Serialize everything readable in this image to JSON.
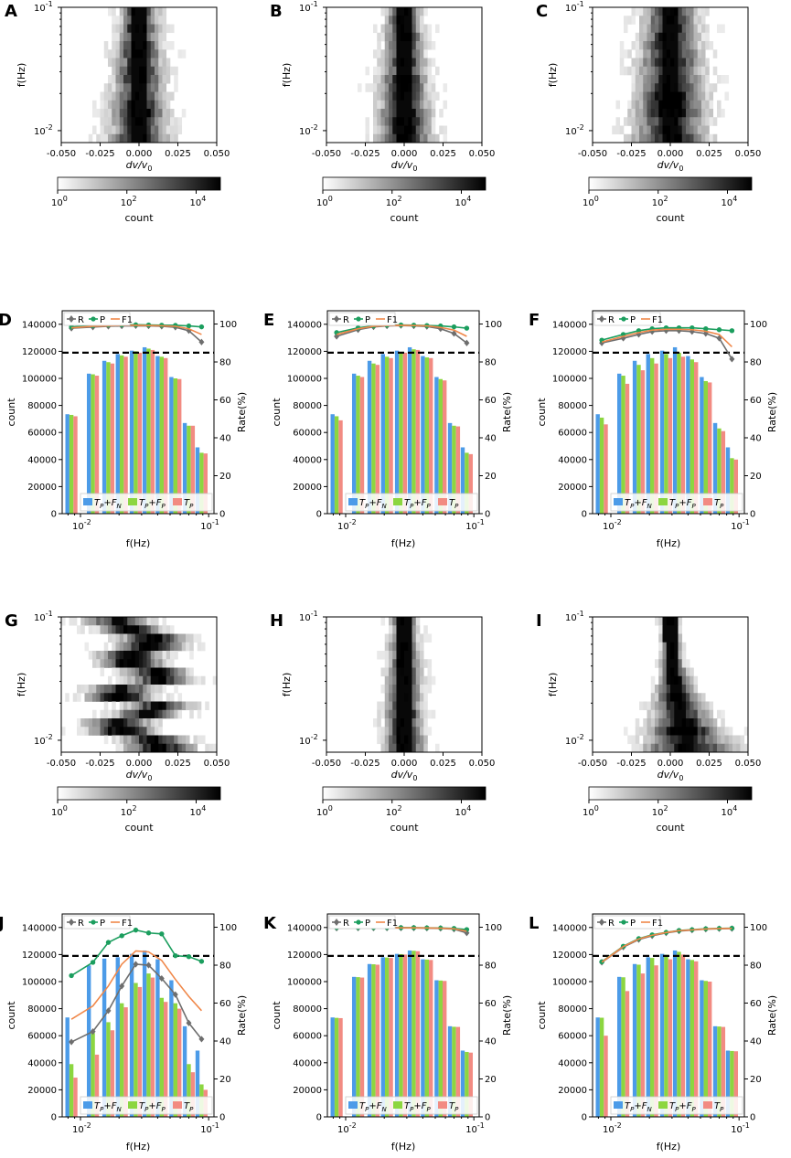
{
  "figure": {
    "heatmap_axes": {
      "xlabel": "dv/v",
      "xlabel_sub": "0",
      "ylabel": "f(Hz)",
      "xticks": [
        "-0.050",
        "-0.025",
        "0.000",
        "0.025",
        "0.050"
      ],
      "yticks": [
        {
          "base": "10",
          "exp": "-1"
        },
        {
          "base": "10",
          "exp": "-2"
        }
      ],
      "colorbar_label": "count",
      "colorbar_ticks": [
        {
          "base": "10",
          "exp": "0"
        },
        {
          "base": "10",
          "exp": "2"
        },
        {
          "base": "10",
          "exp": "4"
        }
      ]
    },
    "bar_axes": {
      "xlabel": "f(Hz)",
      "ylabel_left": "count",
      "ylabel_right": "Rate(%)",
      "yticks_left": [
        "0",
        "20000",
        "40000",
        "60000",
        "80000",
        "100000",
        "120000",
        "140000"
      ],
      "yticks_right": [
        "0",
        "20",
        "40",
        "60",
        "80",
        "100"
      ],
      "xticks": [
        {
          "base": "10",
          "exp": "-2"
        },
        {
          "base": "10",
          "exp": "-1"
        }
      ],
      "line_legend": [
        "R",
        "P",
        "F1"
      ],
      "bar_legend": [
        {
          "main": "T",
          "sub": "P",
          "plus": "+",
          "main2": "F",
          "sub2": "N"
        },
        {
          "main": "T",
          "sub": "P",
          "plus": "+",
          "main2": "F",
          "sub2": "P"
        },
        {
          "main": "T",
          "sub": "P",
          "plus": "",
          "main2": "",
          "sub2": ""
        }
      ]
    },
    "colors": {
      "bar_tpfn": "#4c9be8",
      "bar_tpfp": "#8cd640",
      "bar_tp": "#f28b82",
      "R": "#6e6e6e",
      "P": "#1b9e5e",
      "F1": "#f0884a",
      "threshold": "#000000"
    }
  },
  "chart_data": [
    {
      "panel": "A",
      "type": "heatmap",
      "xlabel": "dv/v0",
      "ylabel": "f(Hz)",
      "xlim": [
        -0.05,
        0.05
      ],
      "ylim": [
        0.008,
        0.1
      ],
      "colorbar": "count (log, 1 to 50000)",
      "center": 0.0,
      "width": 0.018,
      "width_low": 0.028,
      "noise": 0.009
    },
    {
      "panel": "B",
      "type": "heatmap",
      "xlabel": "dv/v0",
      "ylabel": "f(Hz)",
      "xlim": [
        -0.05,
        0.05
      ],
      "ylim": [
        0.008,
        0.1
      ],
      "colorbar": "count (log, 1 to 50000)",
      "center": 0.0,
      "width": 0.016,
      "width_low": 0.026,
      "noise": 0.008
    },
    {
      "panel": "C",
      "type": "heatmap",
      "xlabel": "dv/v0",
      "ylabel": "f(Hz)",
      "xlim": [
        -0.05,
        0.05
      ],
      "ylim": [
        0.008,
        0.1
      ],
      "colorbar": "count (log, 1 to 50000)",
      "center": 0.0,
      "width": 0.025,
      "width_low": 0.036,
      "noise": 0.01
    },
    {
      "panel": "D",
      "type": "bar",
      "xlabel": "f(Hz)",
      "ylabel": "count",
      "ylabel_right": "Rate(%)",
      "ylim": [
        0,
        150000
      ],
      "ylim_right": [
        0,
        107
      ],
      "threshold_count": 119000,
      "x": [
        0.0085,
        0.0125,
        0.0165,
        0.021,
        0.027,
        0.034,
        0.043,
        0.055,
        0.07,
        0.088
      ],
      "series": [
        {
          "name": "TP+FN",
          "values": [
            73500,
            103500,
            113000,
            118000,
            120500,
            123000,
            116500,
            101000,
            67000,
            49000
          ]
        },
        {
          "name": "TP+FP",
          "values": [
            73000,
            103000,
            112000,
            117000,
            120000,
            122000,
            116000,
            100000,
            65000,
            45000
          ]
        },
        {
          "name": "TP",
          "values": [
            72000,
            102000,
            111000,
            116000,
            119000,
            121000,
            115000,
            99500,
            65000,
            44500
          ]
        }
      ],
      "lines": [
        {
          "name": "R",
          "values": [
            97.8,
            98.4,
            98.8,
            99.0,
            99.1,
            99.0,
            98.8,
            98.3,
            96.5,
            90.5
          ]
        },
        {
          "name": "P",
          "values": [
            98.5,
            99.2,
            99.5,
            99.6,
            99.6,
            99.5,
            99.4,
            99.3,
            99.0,
            98.5
          ]
        },
        {
          "name": "F1",
          "values": [
            98.0,
            98.8,
            99.1,
            99.3,
            99.3,
            99.2,
            99.1,
            98.8,
            97.5,
            94.5
          ]
        }
      ]
    },
    {
      "panel": "E",
      "type": "bar",
      "xlabel": "f(Hz)",
      "ylabel": "count",
      "ylabel_right": "Rate(%)",
      "ylim": [
        0,
        150000
      ],
      "ylim_right": [
        0,
        107
      ],
      "threshold_count": 119000,
      "x": [
        0.0085,
        0.0125,
        0.0165,
        0.021,
        0.027,
        0.034,
        0.043,
        0.055,
        0.07,
        0.088
      ],
      "series": [
        {
          "name": "TP+FN",
          "values": [
            73500,
            103500,
            113000,
            118000,
            120500,
            123000,
            116500,
            101000,
            67000,
            49000
          ]
        },
        {
          "name": "TP+FP",
          "values": [
            72000,
            102000,
            111000,
            116000,
            119500,
            121500,
            115500,
            99500,
            65000,
            45000
          ]
        },
        {
          "name": "TP",
          "values": [
            69000,
            101000,
            110000,
            115000,
            119000,
            121000,
            115000,
            98500,
            64500,
            44000
          ]
        }
      ],
      "lines": [
        {
          "name": "R",
          "values": [
            93.5,
            97.0,
            98.5,
            99.0,
            99.2,
            99.0,
            98.7,
            97.5,
            95.0,
            90.0
          ]
        },
        {
          "name": "P",
          "values": [
            95.5,
            98.0,
            99.0,
            99.4,
            99.5,
            99.4,
            99.2,
            99.0,
            98.5,
            97.8
          ]
        },
        {
          "name": "F1",
          "values": [
            94.5,
            97.5,
            98.8,
            99.2,
            99.3,
            99.2,
            99.0,
            98.2,
            96.8,
            93.5
          ]
        }
      ]
    },
    {
      "panel": "F",
      "type": "bar",
      "xlabel": "f(Hz)",
      "ylabel": "count",
      "ylabel_right": "Rate(%)",
      "ylim": [
        0,
        150000
      ],
      "ylim_right": [
        0,
        107
      ],
      "threshold_count": 119000,
      "x": [
        0.0085,
        0.0125,
        0.0165,
        0.021,
        0.027,
        0.034,
        0.043,
        0.055,
        0.07,
        0.088
      ],
      "series": [
        {
          "name": "TP+FN",
          "values": [
            73500,
            103500,
            113000,
            118000,
            120500,
            123000,
            116500,
            101000,
            67000,
            49000
          ]
        },
        {
          "name": "TP+FP",
          "values": [
            71000,
            102000,
            110000,
            115000,
            118000,
            119000,
            114000,
            98000,
            63000,
            41000
          ]
        },
        {
          "name": "TP",
          "values": [
            66000,
            96000,
            106000,
            111000,
            115000,
            116000,
            112000,
            97000,
            61000,
            40000
          ]
        }
      ],
      "lines": [
        {
          "name": "R",
          "values": [
            90.0,
            92.5,
            94.5,
            96.0,
            96.5,
            96.5,
            96.0,
            95.0,
            92.5,
            81.5
          ]
        },
        {
          "name": "P",
          "values": [
            91.5,
            94.5,
            96.5,
            97.5,
            98.0,
            98.0,
            98.0,
            97.5,
            97.0,
            96.5
          ]
        },
        {
          "name": "F1",
          "values": [
            90.5,
            93.5,
            95.5,
            96.8,
            97.2,
            97.2,
            97.0,
            96.2,
            94.5,
            88.0
          ]
        }
      ]
    },
    {
      "panel": "G",
      "type": "heatmap",
      "xlabel": "dv/v0",
      "ylabel": "f(Hz)",
      "xlim": [
        -0.05,
        0.05
      ],
      "ylim": [
        0.008,
        0.1
      ],
      "colorbar": "count (log, 1 to 50000)",
      "center": 0.0,
      "width": 0.03,
      "width_low": 0.032,
      "noise": 0.012,
      "bias": 0.015
    },
    {
      "panel": "H",
      "type": "heatmap",
      "xlabel": "dv/v0",
      "ylabel": "f(Hz)",
      "xlim": [
        -0.05,
        0.05
      ],
      "ylim": [
        0.008,
        0.1
      ],
      "colorbar": "count (log, 1 to 50000)",
      "center": 0.0,
      "width": 0.012,
      "width_low": 0.02,
      "noise": 0.006
    },
    {
      "panel": "I",
      "type": "heatmap",
      "xlabel": "dv/v0",
      "ylabel": "f(Hz)",
      "xlim": [
        -0.05,
        0.05
      ],
      "ylim": [
        0.008,
        0.1
      ],
      "colorbar": "count (log, 1 to 50000)",
      "center": 0.0,
      "width": 0.008,
      "width_low": 0.045,
      "noise": 0.006,
      "skew": 0.02
    },
    {
      "panel": "J",
      "type": "bar",
      "xlabel": "f(Hz)",
      "ylabel": "count",
      "ylabel_right": "Rate(%)",
      "ylim": [
        0,
        150000
      ],
      "ylim_right": [
        0,
        107
      ],
      "threshold_count": 119000,
      "x": [
        0.0085,
        0.0125,
        0.0165,
        0.021,
        0.027,
        0.034,
        0.043,
        0.055,
        0.07,
        0.088
      ],
      "series": [
        {
          "name": "TP+FN",
          "values": [
            73500,
            112000,
            117000,
            118000,
            120500,
            123000,
            116500,
            101000,
            67000,
            49000
          ]
        },
        {
          "name": "TP+FP",
          "values": [
            39000,
            62000,
            70000,
            84000,
            99000,
            106000,
            88000,
            84000,
            39000,
            24000
          ]
        },
        {
          "name": "TP",
          "values": [
            29000,
            46000,
            64000,
            81000,
            96000,
            103000,
            85000,
            80000,
            33000,
            20000
          ]
        }
      ],
      "lines": [
        {
          "name": "R",
          "values": [
            39.5,
            45.0,
            56.0,
            69.0,
            80.5,
            80.0,
            73.0,
            64.5,
            49.5,
            41.0
          ]
        },
        {
          "name": "P",
          "values": [
            74.5,
            81.5,
            92.0,
            95.5,
            98.5,
            97.0,
            96.5,
            85.0,
            84.5,
            82.0
          ]
        },
        {
          "name": "F1",
          "values": [
            51.5,
            58.5,
            69.0,
            80.5,
            87.5,
            87.0,
            82.5,
            72.5,
            63.5,
            56.0
          ]
        }
      ]
    },
    {
      "panel": "K",
      "type": "bar",
      "xlabel": "f(Hz)",
      "ylabel": "count",
      "ylabel_right": "Rate(%)",
      "ylim": [
        0,
        150000
      ],
      "ylim_right": [
        0,
        107
      ],
      "threshold_count": 119000,
      "x": [
        0.0085,
        0.0125,
        0.0165,
        0.021,
        0.027,
        0.034,
        0.043,
        0.055,
        0.07,
        0.088
      ],
      "series": [
        {
          "name": "TP+FN",
          "values": [
            73500,
            103500,
            113000,
            118000,
            120500,
            123000,
            116500,
            101000,
            67000,
            49000
          ]
        },
        {
          "name": "TP+FP",
          "values": [
            73200,
            103300,
            112800,
            117800,
            120300,
            122800,
            116300,
            100800,
            66600,
            48000
          ]
        },
        {
          "name": "TP",
          "values": [
            73000,
            103000,
            112500,
            117500,
            120000,
            122500,
            116000,
            100500,
            66500,
            47500
          ]
        }
      ],
      "lines": [
        {
          "name": "R",
          "values": [
            99.5,
            99.6,
            99.6,
            99.6,
            99.6,
            99.6,
            99.5,
            99.4,
            99.0,
            97.0
          ]
        },
        {
          "name": "P",
          "values": [
            99.8,
            99.8,
            99.8,
            99.8,
            99.8,
            99.8,
            99.7,
            99.6,
            99.4,
            98.8
          ]
        },
        {
          "name": "F1",
          "values": [
            99.6,
            99.7,
            99.7,
            99.7,
            99.7,
            99.7,
            99.6,
            99.5,
            99.2,
            97.9
          ]
        }
      ]
    },
    {
      "panel": "L",
      "type": "bar",
      "xlabel": "f(Hz)",
      "ylabel": "count",
      "ylabel_right": "Rate(%)",
      "ylim": [
        0,
        150000
      ],
      "ylim_right": [
        0,
        107
      ],
      "threshold_count": 119000,
      "x": [
        0.0085,
        0.0125,
        0.0165,
        0.021,
        0.027,
        0.034,
        0.043,
        0.055,
        0.07,
        0.088
      ],
      "series": [
        {
          "name": "TP+FN",
          "values": [
            73500,
            103500,
            113000,
            118000,
            120500,
            123000,
            116500,
            101000,
            67000,
            49000
          ]
        },
        {
          "name": "TP+FP",
          "values": [
            73300,
            103200,
            112500,
            117500,
            119800,
            122000,
            116000,
            100500,
            66800,
            48700
          ]
        },
        {
          "name": "TP",
          "values": [
            60000,
            93000,
            106000,
            112000,
            116500,
            120000,
            115000,
            100000,
            66500,
            48500
          ]
        }
      ],
      "lines": [
        {
          "name": "R",
          "values": [
            81.5,
            89.5,
            93.5,
            95.5,
            97.0,
            98.0,
            98.5,
            99.0,
            99.2,
            99.3
          ]
        },
        {
          "name": "P",
          "values": [
            81.8,
            90.0,
            94.0,
            96.0,
            97.3,
            98.3,
            98.7,
            99.2,
            99.4,
            99.5
          ]
        },
        {
          "name": "F1",
          "values": [
            81.6,
            89.8,
            93.8,
            95.8,
            97.2,
            98.2,
            98.6,
            99.1,
            99.3,
            99.4
          ]
        }
      ]
    }
  ]
}
